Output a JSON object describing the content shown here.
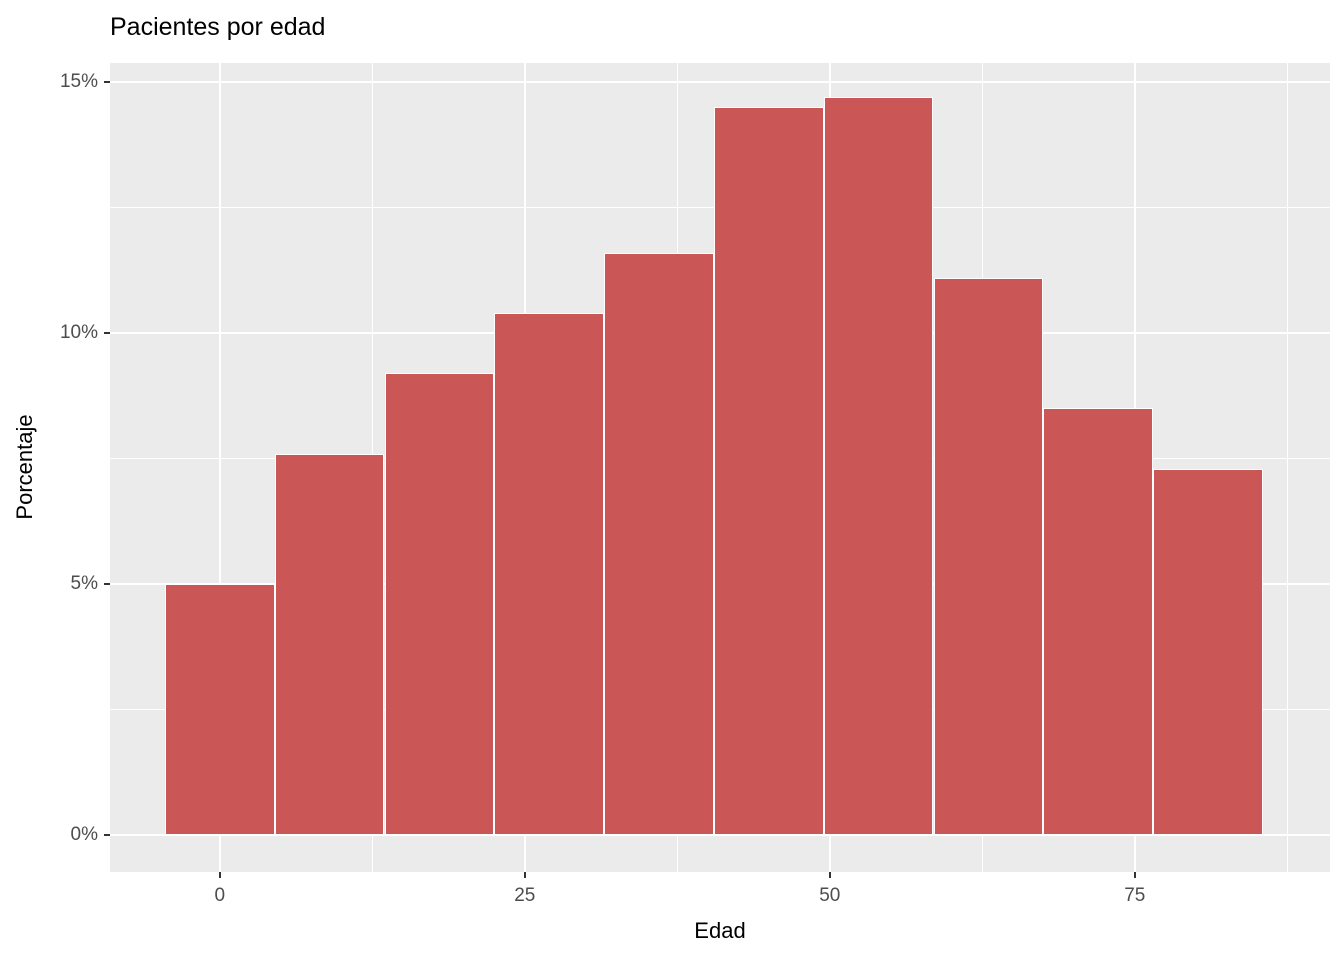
{
  "title": "Pacientes por edad",
  "chart_data": {
    "type": "bar",
    "subtype": "histogram",
    "title": "Pacientes por edad",
    "xlabel": "Edad",
    "ylabel": "Porcentaje",
    "bin_width": 9,
    "bin_edges": [
      -4.5,
      4.5,
      13.5,
      22.5,
      31.5,
      40.5,
      49.5,
      58.5,
      67.5,
      76.5,
      85.5
    ],
    "bin_centers": [
      0,
      9,
      18,
      27,
      36,
      45,
      54,
      63,
      72,
      81
    ],
    "values_percent": [
      5.0,
      7.6,
      9.2,
      10.4,
      11.6,
      14.5,
      14.7,
      11.1,
      8.5,
      7.3
    ],
    "x_ticks": [
      0,
      25,
      50,
      75
    ],
    "x_tick_labels": [
      "0",
      "25",
      "50",
      "75"
    ],
    "x_minor_ticks": [
      12.5,
      37.5,
      62.5,
      87.5
    ],
    "y_ticks": [
      0,
      5,
      10,
      15
    ],
    "y_tick_labels": [
      "0%",
      "5%",
      "10%",
      "15%"
    ],
    "y_minor_ticks": [
      2.5,
      7.5,
      12.5
    ],
    "xlim": [
      -9,
      91
    ],
    "ylim": [
      -0.73,
      15.38
    ],
    "grid": true,
    "legend": false,
    "colors": {
      "bar_fill": "#CB5656",
      "bar_border": "#FFFFFF",
      "panel_bg": "#EBEBEB",
      "gridline": "#FFFFFF",
      "tick_mark": "#333333",
      "tick_label": "#4D4D4D",
      "title_text": "#000000"
    }
  }
}
